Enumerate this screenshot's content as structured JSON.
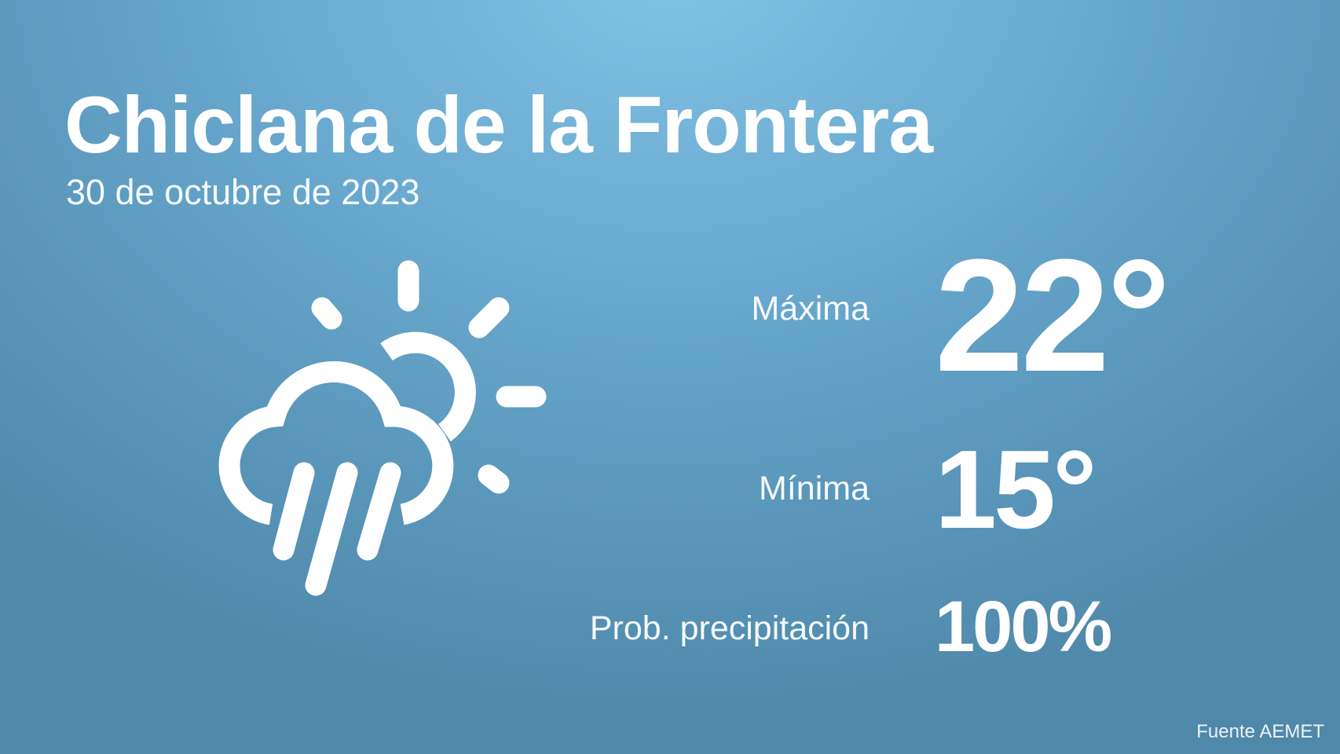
{
  "location": "Chiclana de la Frontera",
  "date": "30 de octubre de 2023",
  "weather_icon": "sun-cloud-rain-icon",
  "max": {
    "label": "Máxima",
    "value": "22°"
  },
  "min": {
    "label": "Mínima",
    "value": "15°"
  },
  "precipitation": {
    "label": "Prob. precipitación",
    "value": "100%"
  },
  "source": "Fuente AEMET",
  "colors": {
    "background_top": "#82c2e4",
    "background_bottom": "#4f88a9",
    "text": "#ffffff"
  }
}
